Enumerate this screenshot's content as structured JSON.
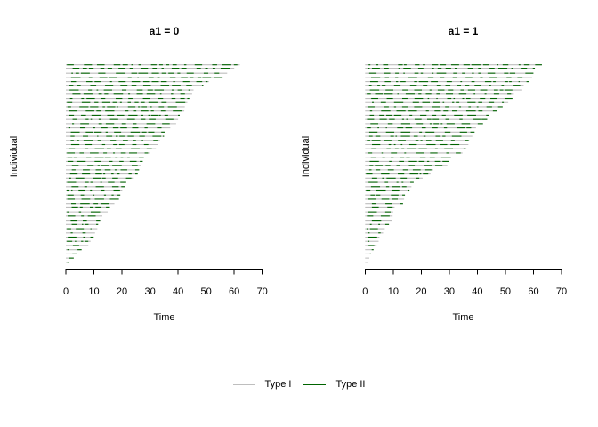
{
  "chart_data": {
    "type": "line",
    "subtype": "event-history-individual-timelines",
    "xlabel": "Time",
    "ylabel": "Individual",
    "xlim": [
      0,
      70
    ],
    "x_ticks": [
      0,
      10,
      20,
      30,
      40,
      50,
      60,
      70
    ],
    "n_individuals_per_panel": 48,
    "panels": [
      {
        "title": "a1 = 0",
        "totals": [
          62,
          60,
          57.5,
          56,
          51,
          49,
          45.5,
          45,
          44,
          43.3,
          42.4,
          42.2,
          40.6,
          40,
          39.3,
          37.2,
          35.2,
          35,
          33.5,
          32.9,
          32.1,
          29.7,
          27.9,
          27.4,
          26.8,
          26.1,
          25.6,
          24.2,
          21.5,
          21.0,
          20.1,
          19.4,
          18.9,
          17.3,
          15.7,
          14.9,
          13.0,
          12.7,
          11.5,
          11.2,
          10.4,
          9.9,
          8.8,
          8.0,
          5.6,
          3.8,
          2.8,
          0.9
        ]
      },
      {
        "title": "a1 = 1",
        "totals": [
          63,
          60.5,
          60,
          59.5,
          58.5,
          56.5,
          56,
          53,
          52.5,
          51,
          49,
          47,
          44,
          43.5,
          42,
          39.5,
          39,
          38.2,
          37.1,
          36.8,
          36.1,
          34.7,
          30.7,
          29.9,
          29.3,
          24.3,
          23.3,
          20.5,
          17.3,
          16.5,
          15.8,
          14.2,
          13.9,
          13.5,
          10.5,
          10,
          9.8,
          9.6,
          8.5,
          7,
          6.4,
          5.1,
          4.8,
          4.1,
          3,
          2.1,
          1.5,
          0.9
        ]
      }
    ],
    "legend": {
      "position": "bottom-center",
      "items": [
        {
          "label": "Type I",
          "color": "#bebebe"
        },
        {
          "label": "Type II",
          "color": "#006400"
        }
      ]
    },
    "colors": {
      "axis": "#000000",
      "text": "#000000",
      "background": "#ffffff"
    },
    "texture": {
      "seed": 1337,
      "gray_gap_range": [
        0.4,
        3.8
      ],
      "green_seg_range": [
        0.4,
        3.4
      ]
    }
  }
}
